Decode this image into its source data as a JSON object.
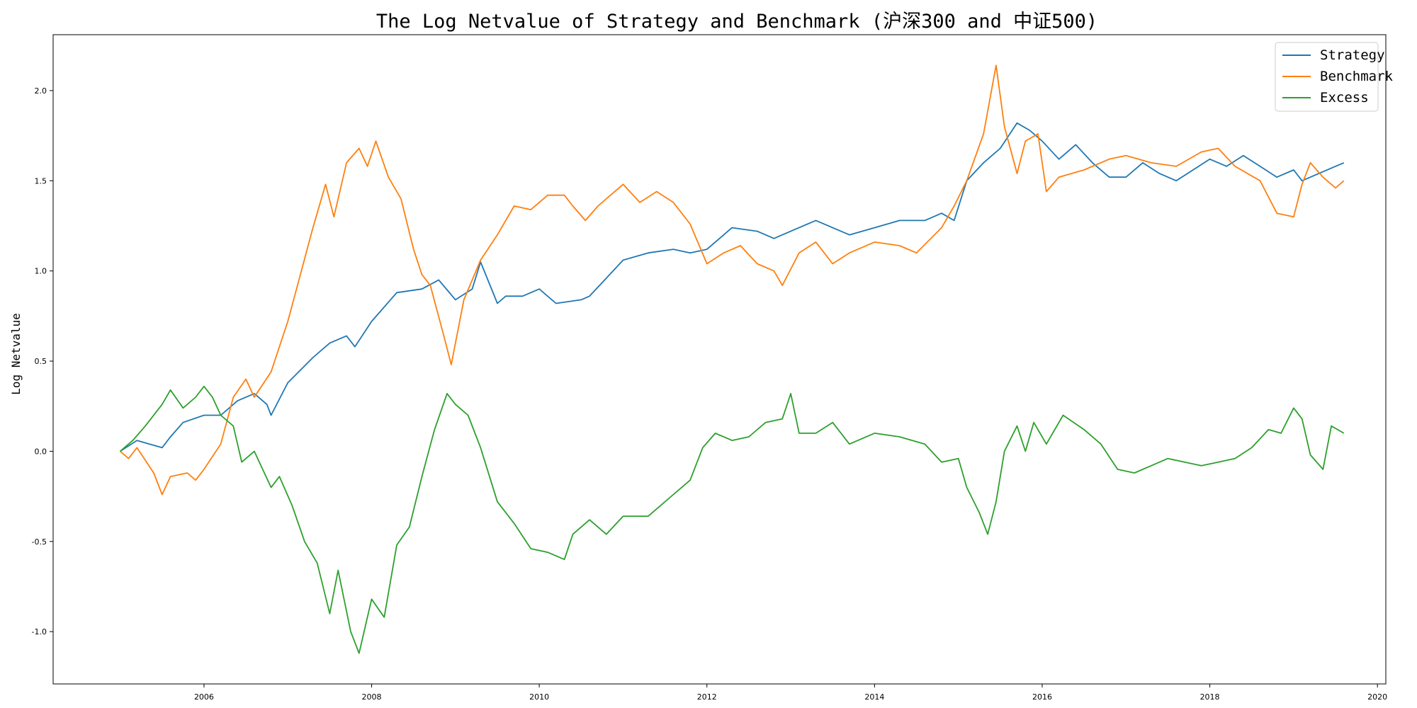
{
  "chart_data": {
    "type": "line",
    "title": "The Log Netvalue of Strategy and Benchmark (沪深300 and 中证500)",
    "xlabel": "",
    "ylabel": "Log Netvalue",
    "xlim": [
      2004.2,
      2020.1
    ],
    "ylim": [
      -1.29,
      2.31
    ],
    "x_ticks": [
      {
        "value": 2006,
        "label": "2006"
      },
      {
        "value": 2008,
        "label": "2008"
      },
      {
        "value": 2010,
        "label": "2010"
      },
      {
        "value": 2012,
        "label": "2012"
      },
      {
        "value": 2014,
        "label": "2014"
      },
      {
        "value": 2016,
        "label": "2016"
      },
      {
        "value": 2018,
        "label": "2018"
      },
      {
        "value": 2020,
        "label": "2020"
      }
    ],
    "y_ticks": [
      {
        "value": -1.0,
        "label": "-1.0"
      },
      {
        "value": -0.5,
        "label": "-0.5"
      },
      {
        "value": 0.0,
        "label": "0.0"
      },
      {
        "value": 0.5,
        "label": "0.5"
      },
      {
        "value": 1.0,
        "label": "1.0"
      },
      {
        "value": 1.5,
        "label": "1.5"
      },
      {
        "value": 2.0,
        "label": "2.0"
      }
    ],
    "grid": false,
    "legend_position": "top-right",
    "series": [
      {
        "name": "Strategy",
        "color": "#1f77b4",
        "points": [
          [
            2005.0,
            0.0
          ],
          [
            2005.2,
            0.06
          ],
          [
            2005.35,
            0.04
          ],
          [
            2005.5,
            0.02
          ],
          [
            2005.6,
            0.08
          ],
          [
            2005.75,
            0.16
          ],
          [
            2006.0,
            0.2
          ],
          [
            2006.2,
            0.2
          ],
          [
            2006.4,
            0.28
          ],
          [
            2006.6,
            0.32
          ],
          [
            2006.75,
            0.26
          ],
          [
            2006.8,
            0.2
          ],
          [
            2007.0,
            0.38
          ],
          [
            2007.3,
            0.52
          ],
          [
            2007.5,
            0.6
          ],
          [
            2007.7,
            0.64
          ],
          [
            2007.8,
            0.58
          ],
          [
            2008.0,
            0.72
          ],
          [
            2008.3,
            0.88
          ],
          [
            2008.6,
            0.9
          ],
          [
            2008.8,
            0.95
          ],
          [
            2009.0,
            0.84
          ],
          [
            2009.2,
            0.9
          ],
          [
            2009.3,
            1.05
          ],
          [
            2009.5,
            0.82
          ],
          [
            2009.6,
            0.86
          ],
          [
            2009.8,
            0.86
          ],
          [
            2010.0,
            0.9
          ],
          [
            2010.2,
            0.82
          ],
          [
            2010.5,
            0.84
          ],
          [
            2010.6,
            0.86
          ],
          [
            2010.8,
            0.96
          ],
          [
            2011.0,
            1.06
          ],
          [
            2011.3,
            1.1
          ],
          [
            2011.6,
            1.12
          ],
          [
            2011.8,
            1.1
          ],
          [
            2012.0,
            1.12
          ],
          [
            2012.3,
            1.24
          ],
          [
            2012.6,
            1.22
          ],
          [
            2012.8,
            1.18
          ],
          [
            2013.0,
            1.22
          ],
          [
            2013.3,
            1.28
          ],
          [
            2013.5,
            1.24
          ],
          [
            2013.7,
            1.2
          ],
          [
            2014.0,
            1.24
          ],
          [
            2014.3,
            1.28
          ],
          [
            2014.6,
            1.28
          ],
          [
            2014.8,
            1.32
          ],
          [
            2014.95,
            1.28
          ],
          [
            2015.1,
            1.5
          ],
          [
            2015.3,
            1.6
          ],
          [
            2015.5,
            1.68
          ],
          [
            2015.7,
            1.82
          ],
          [
            2015.85,
            1.78
          ],
          [
            2016.0,
            1.72
          ],
          [
            2016.2,
            1.62
          ],
          [
            2016.4,
            1.7
          ],
          [
            2016.6,
            1.6
          ],
          [
            2016.8,
            1.52
          ],
          [
            2017.0,
            1.52
          ],
          [
            2017.2,
            1.6
          ],
          [
            2017.4,
            1.54
          ],
          [
            2017.6,
            1.5
          ],
          [
            2017.8,
            1.56
          ],
          [
            2018.0,
            1.62
          ],
          [
            2018.2,
            1.58
          ],
          [
            2018.4,
            1.64
          ],
          [
            2018.6,
            1.58
          ],
          [
            2018.8,
            1.52
          ],
          [
            2019.0,
            1.56
          ],
          [
            2019.1,
            1.5
          ],
          [
            2019.3,
            1.54
          ],
          [
            2019.5,
            1.58
          ],
          [
            2019.6,
            1.6
          ]
        ]
      },
      {
        "name": "Benchmark",
        "color": "#ff7f0e",
        "points": [
          [
            2005.0,
            0.0
          ],
          [
            2005.1,
            -0.04
          ],
          [
            2005.2,
            0.02
          ],
          [
            2005.4,
            -0.12
          ],
          [
            2005.5,
            -0.24
          ],
          [
            2005.6,
            -0.14
          ],
          [
            2005.8,
            -0.12
          ],
          [
            2005.9,
            -0.16
          ],
          [
            2006.0,
            -0.1
          ],
          [
            2006.2,
            0.04
          ],
          [
            2006.35,
            0.3
          ],
          [
            2006.5,
            0.4
          ],
          [
            2006.6,
            0.3
          ],
          [
            2006.8,
            0.44
          ],
          [
            2007.0,
            0.72
          ],
          [
            2007.15,
            0.98
          ],
          [
            2007.3,
            1.24
          ],
          [
            2007.45,
            1.48
          ],
          [
            2007.55,
            1.3
          ],
          [
            2007.7,
            1.6
          ],
          [
            2007.85,
            1.68
          ],
          [
            2007.95,
            1.58
          ],
          [
            2008.05,
            1.72
          ],
          [
            2008.2,
            1.52
          ],
          [
            2008.35,
            1.4
          ],
          [
            2008.5,
            1.12
          ],
          [
            2008.6,
            0.98
          ],
          [
            2008.7,
            0.92
          ],
          [
            2008.85,
            0.66
          ],
          [
            2008.95,
            0.48
          ],
          [
            2009.1,
            0.84
          ],
          [
            2009.3,
            1.06
          ],
          [
            2009.5,
            1.2
          ],
          [
            2009.7,
            1.36
          ],
          [
            2009.9,
            1.34
          ],
          [
            2010.1,
            1.42
          ],
          [
            2010.3,
            1.42
          ],
          [
            2010.4,
            1.36
          ],
          [
            2010.55,
            1.28
          ],
          [
            2010.7,
            1.36
          ],
          [
            2010.9,
            1.44
          ],
          [
            2011.0,
            1.48
          ],
          [
            2011.2,
            1.38
          ],
          [
            2011.4,
            1.44
          ],
          [
            2011.6,
            1.38
          ],
          [
            2011.8,
            1.26
          ],
          [
            2012.0,
            1.04
          ],
          [
            2012.2,
            1.1
          ],
          [
            2012.4,
            1.14
          ],
          [
            2012.6,
            1.04
          ],
          [
            2012.8,
            1.0
          ],
          [
            2012.9,
            0.92
          ],
          [
            2013.1,
            1.1
          ],
          [
            2013.3,
            1.16
          ],
          [
            2013.5,
            1.04
          ],
          [
            2013.7,
            1.1
          ],
          [
            2014.0,
            1.16
          ],
          [
            2014.3,
            1.14
          ],
          [
            2014.5,
            1.1
          ],
          [
            2014.8,
            1.24
          ],
          [
            2014.95,
            1.36
          ],
          [
            2015.1,
            1.5
          ],
          [
            2015.3,
            1.76
          ],
          [
            2015.45,
            2.14
          ],
          [
            2015.55,
            1.8
          ],
          [
            2015.7,
            1.54
          ],
          [
            2015.8,
            1.72
          ],
          [
            2015.95,
            1.76
          ],
          [
            2016.05,
            1.44
          ],
          [
            2016.2,
            1.52
          ],
          [
            2016.5,
            1.56
          ],
          [
            2016.8,
            1.62
          ],
          [
            2017.0,
            1.64
          ],
          [
            2017.3,
            1.6
          ],
          [
            2017.6,
            1.58
          ],
          [
            2017.9,
            1.66
          ],
          [
            2018.1,
            1.68
          ],
          [
            2018.3,
            1.58
          ],
          [
            2018.6,
            1.5
          ],
          [
            2018.8,
            1.32
          ],
          [
            2019.0,
            1.3
          ],
          [
            2019.1,
            1.48
          ],
          [
            2019.2,
            1.6
          ],
          [
            2019.35,
            1.52
          ],
          [
            2019.5,
            1.46
          ],
          [
            2019.6,
            1.5
          ]
        ]
      },
      {
        "name": "Excess",
        "color": "#2ca02c",
        "points": [
          [
            2005.0,
            0.0
          ],
          [
            2005.15,
            0.06
          ],
          [
            2005.3,
            0.14
          ],
          [
            2005.5,
            0.26
          ],
          [
            2005.6,
            0.34
          ],
          [
            2005.75,
            0.24
          ],
          [
            2005.9,
            0.3
          ],
          [
            2006.0,
            0.36
          ],
          [
            2006.1,
            0.3
          ],
          [
            2006.2,
            0.2
          ],
          [
            2006.35,
            0.14
          ],
          [
            2006.45,
            -0.06
          ],
          [
            2006.6,
            0.0
          ],
          [
            2006.8,
            -0.2
          ],
          [
            2006.9,
            -0.14
          ],
          [
            2007.05,
            -0.3
          ],
          [
            2007.2,
            -0.5
          ],
          [
            2007.35,
            -0.62
          ],
          [
            2007.5,
            -0.9
          ],
          [
            2007.6,
            -0.66
          ],
          [
            2007.75,
            -1.0
          ],
          [
            2007.85,
            -1.12
          ],
          [
            2008.0,
            -0.82
          ],
          [
            2008.15,
            -0.92
          ],
          [
            2008.3,
            -0.52
          ],
          [
            2008.45,
            -0.42
          ],
          [
            2008.6,
            -0.14
          ],
          [
            2008.75,
            0.12
          ],
          [
            2008.9,
            0.32
          ],
          [
            2009.0,
            0.26
          ],
          [
            2009.15,
            0.2
          ],
          [
            2009.3,
            0.02
          ],
          [
            2009.5,
            -0.28
          ],
          [
            2009.7,
            -0.4
          ],
          [
            2009.9,
            -0.54
          ],
          [
            2010.1,
            -0.56
          ],
          [
            2010.3,
            -0.6
          ],
          [
            2010.4,
            -0.46
          ],
          [
            2010.6,
            -0.38
          ],
          [
            2010.8,
            -0.46
          ],
          [
            2011.0,
            -0.36
          ],
          [
            2011.3,
            -0.36
          ],
          [
            2011.6,
            -0.24
          ],
          [
            2011.8,
            -0.16
          ],
          [
            2011.95,
            0.02
          ],
          [
            2012.1,
            0.1
          ],
          [
            2012.3,
            0.06
          ],
          [
            2012.5,
            0.08
          ],
          [
            2012.7,
            0.16
          ],
          [
            2012.9,
            0.18
          ],
          [
            2013.0,
            0.32
          ],
          [
            2013.1,
            0.1
          ],
          [
            2013.3,
            0.1
          ],
          [
            2013.5,
            0.16
          ],
          [
            2013.7,
            0.04
          ],
          [
            2014.0,
            0.1
          ],
          [
            2014.3,
            0.08
          ],
          [
            2014.6,
            0.04
          ],
          [
            2014.8,
            -0.06
          ],
          [
            2015.0,
            -0.04
          ],
          [
            2015.1,
            -0.2
          ],
          [
            2015.25,
            -0.34
          ],
          [
            2015.35,
            -0.46
          ],
          [
            2015.45,
            -0.28
          ],
          [
            2015.55,
            0.0
          ],
          [
            2015.7,
            0.14
          ],
          [
            2015.8,
            0.0
          ],
          [
            2015.9,
            0.16
          ],
          [
            2016.05,
            0.04
          ],
          [
            2016.25,
            0.2
          ],
          [
            2016.5,
            0.12
          ],
          [
            2016.7,
            0.04
          ],
          [
            2016.9,
            -0.1
          ],
          [
            2017.1,
            -0.12
          ],
          [
            2017.3,
            -0.08
          ],
          [
            2017.5,
            -0.04
          ],
          [
            2017.7,
            -0.06
          ],
          [
            2017.9,
            -0.08
          ],
          [
            2018.1,
            -0.06
          ],
          [
            2018.3,
            -0.04
          ],
          [
            2018.5,
            0.02
          ],
          [
            2018.7,
            0.12
          ],
          [
            2018.85,
            0.1
          ],
          [
            2019.0,
            0.24
          ],
          [
            2019.1,
            0.18
          ],
          [
            2019.2,
            -0.02
          ],
          [
            2019.35,
            -0.1
          ],
          [
            2019.45,
            0.14
          ],
          [
            2019.6,
            0.1
          ]
        ]
      }
    ]
  }
}
